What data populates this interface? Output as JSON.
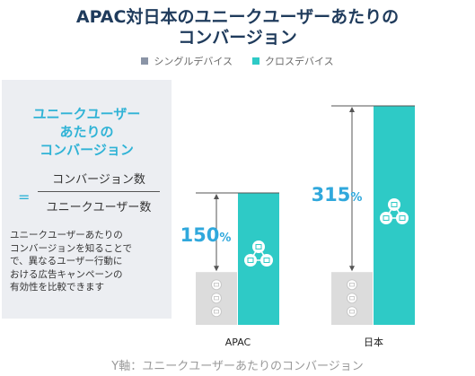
{
  "title_lines": [
    "APAC対日本のユニークユーザーあたりの",
    "コンバージョン"
  ],
  "legend": [
    {
      "label": "シングルデバイス",
      "color": "#8a94a6"
    },
    {
      "label": "クロスデバイス",
      "color": "#2ecac6"
    }
  ],
  "panel": {
    "heading_lines": [
      "ユニークユーザー",
      "あたりの",
      "コンバージョン"
    ],
    "equals": "=",
    "numerator": "コンバージョン数",
    "denominator": "ユニークユーザー数",
    "description_lines": [
      "ユニークユーザーあたりの",
      "コンバージョンを知ることで",
      "で、異なるユーザー行動に",
      "おける広告キャンペーンの",
      "有効性を比較できます"
    ]
  },
  "y_axis_note": "Y軸：ユニークユーザーあたりのコンバージョン",
  "colors": {
    "single": "#dcdcdc",
    "cross": "#2ecac6",
    "label": "#30a8dc",
    "bracket": "#555555"
  },
  "chart_data": {
    "type": "bar",
    "categories": [
      "APAC",
      "日本"
    ],
    "series": [
      {
        "name": "シングルデバイス",
        "values": [
          100,
          100
        ]
      },
      {
        "name": "クロスデバイス",
        "values": [
          250,
          415
        ]
      }
    ],
    "uplift_labels": [
      {
        "value": "150",
        "unit": "%"
      },
      {
        "value": "315",
        "unit": "%"
      }
    ],
    "ylim": [
      0,
      415
    ]
  }
}
